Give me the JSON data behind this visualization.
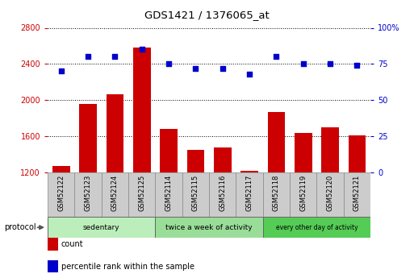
{
  "title": "GDS1421 / 1376065_at",
  "samples": [
    "GSM52122",
    "GSM52123",
    "GSM52124",
    "GSM52125",
    "GSM52114",
    "GSM52115",
    "GSM52116",
    "GSM52117",
    "GSM52118",
    "GSM52119",
    "GSM52120",
    "GSM52121"
  ],
  "counts": [
    1270,
    1960,
    2060,
    2580,
    1680,
    1450,
    1480,
    1220,
    1870,
    1640,
    1700,
    1610
  ],
  "percentiles": [
    70,
    80,
    80,
    85,
    75,
    72,
    72,
    68,
    80,
    75,
    75,
    74
  ],
  "ylim_left": [
    1200,
    2800
  ],
  "ylim_right": [
    0,
    100
  ],
  "yticks_left": [
    1200,
    1600,
    2000,
    2400,
    2800
  ],
  "yticks_right": [
    0,
    25,
    50,
    75,
    100
  ],
  "groups": [
    {
      "label": "sedentary",
      "start": 0,
      "end": 4,
      "color": "#bbeebb"
    },
    {
      "label": "twice a week of activity",
      "start": 4,
      "end": 8,
      "color": "#99dd99"
    },
    {
      "label": "every other day of activity",
      "start": 8,
      "end": 12,
      "color": "#55cc55"
    }
  ],
  "bar_color": "#cc0000",
  "dot_color": "#0000cc",
  "bar_width": 0.65,
  "background_color": "#ffffff",
  "plot_bg_color": "#ffffff",
  "legend_count_color": "#cc0000",
  "legend_pct_color": "#0000cc",
  "sample_box_color": "#cccccc",
  "grid_color": "#000000",
  "left_axis_color": "#cc0000",
  "right_axis_color": "#0000cc"
}
